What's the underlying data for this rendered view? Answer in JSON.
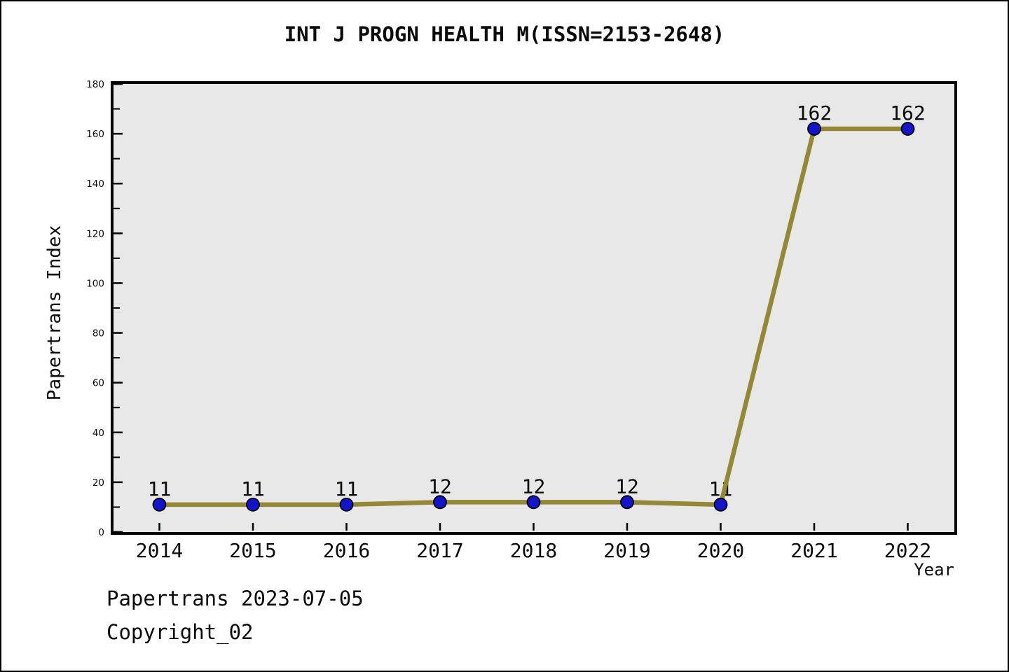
{
  "title": "INT J PROGN HEALTH M(ISSN=2153-2648)",
  "footer": {
    "line1": "Papertrans 2023-07-05",
    "line2": "Copyright_02"
  },
  "chart_data": {
    "type": "line",
    "title": "INT J PROGN HEALTH M(ISSN=2153-2648)",
    "xlabel": "Year",
    "ylabel": "Papertrans Index",
    "x": [
      2014,
      2015,
      2016,
      2017,
      2018,
      2019,
      2020,
      2021,
      2022
    ],
    "values": [
      11,
      11,
      11,
      12,
      12,
      12,
      11,
      162,
      162
    ],
    "point_labels": [
      "11",
      "11",
      "11",
      "12",
      "12",
      "12",
      "11",
      "162",
      "162"
    ],
    "ylim": [
      0,
      180
    ],
    "y_major_ticks": [
      0,
      20,
      40,
      60,
      80,
      100,
      120,
      140,
      160,
      180
    ],
    "y_minor_ticks": [
      10,
      30,
      50,
      70,
      90,
      110,
      130,
      150,
      170
    ],
    "grid": false,
    "legend": null,
    "colors": {
      "line": "#948736",
      "marker_fill": "#1414cd",
      "marker_edge": "#000000",
      "plot_background": "#e8e8e8",
      "axis": "#000000",
      "text": "#0a0a0a"
    }
  }
}
